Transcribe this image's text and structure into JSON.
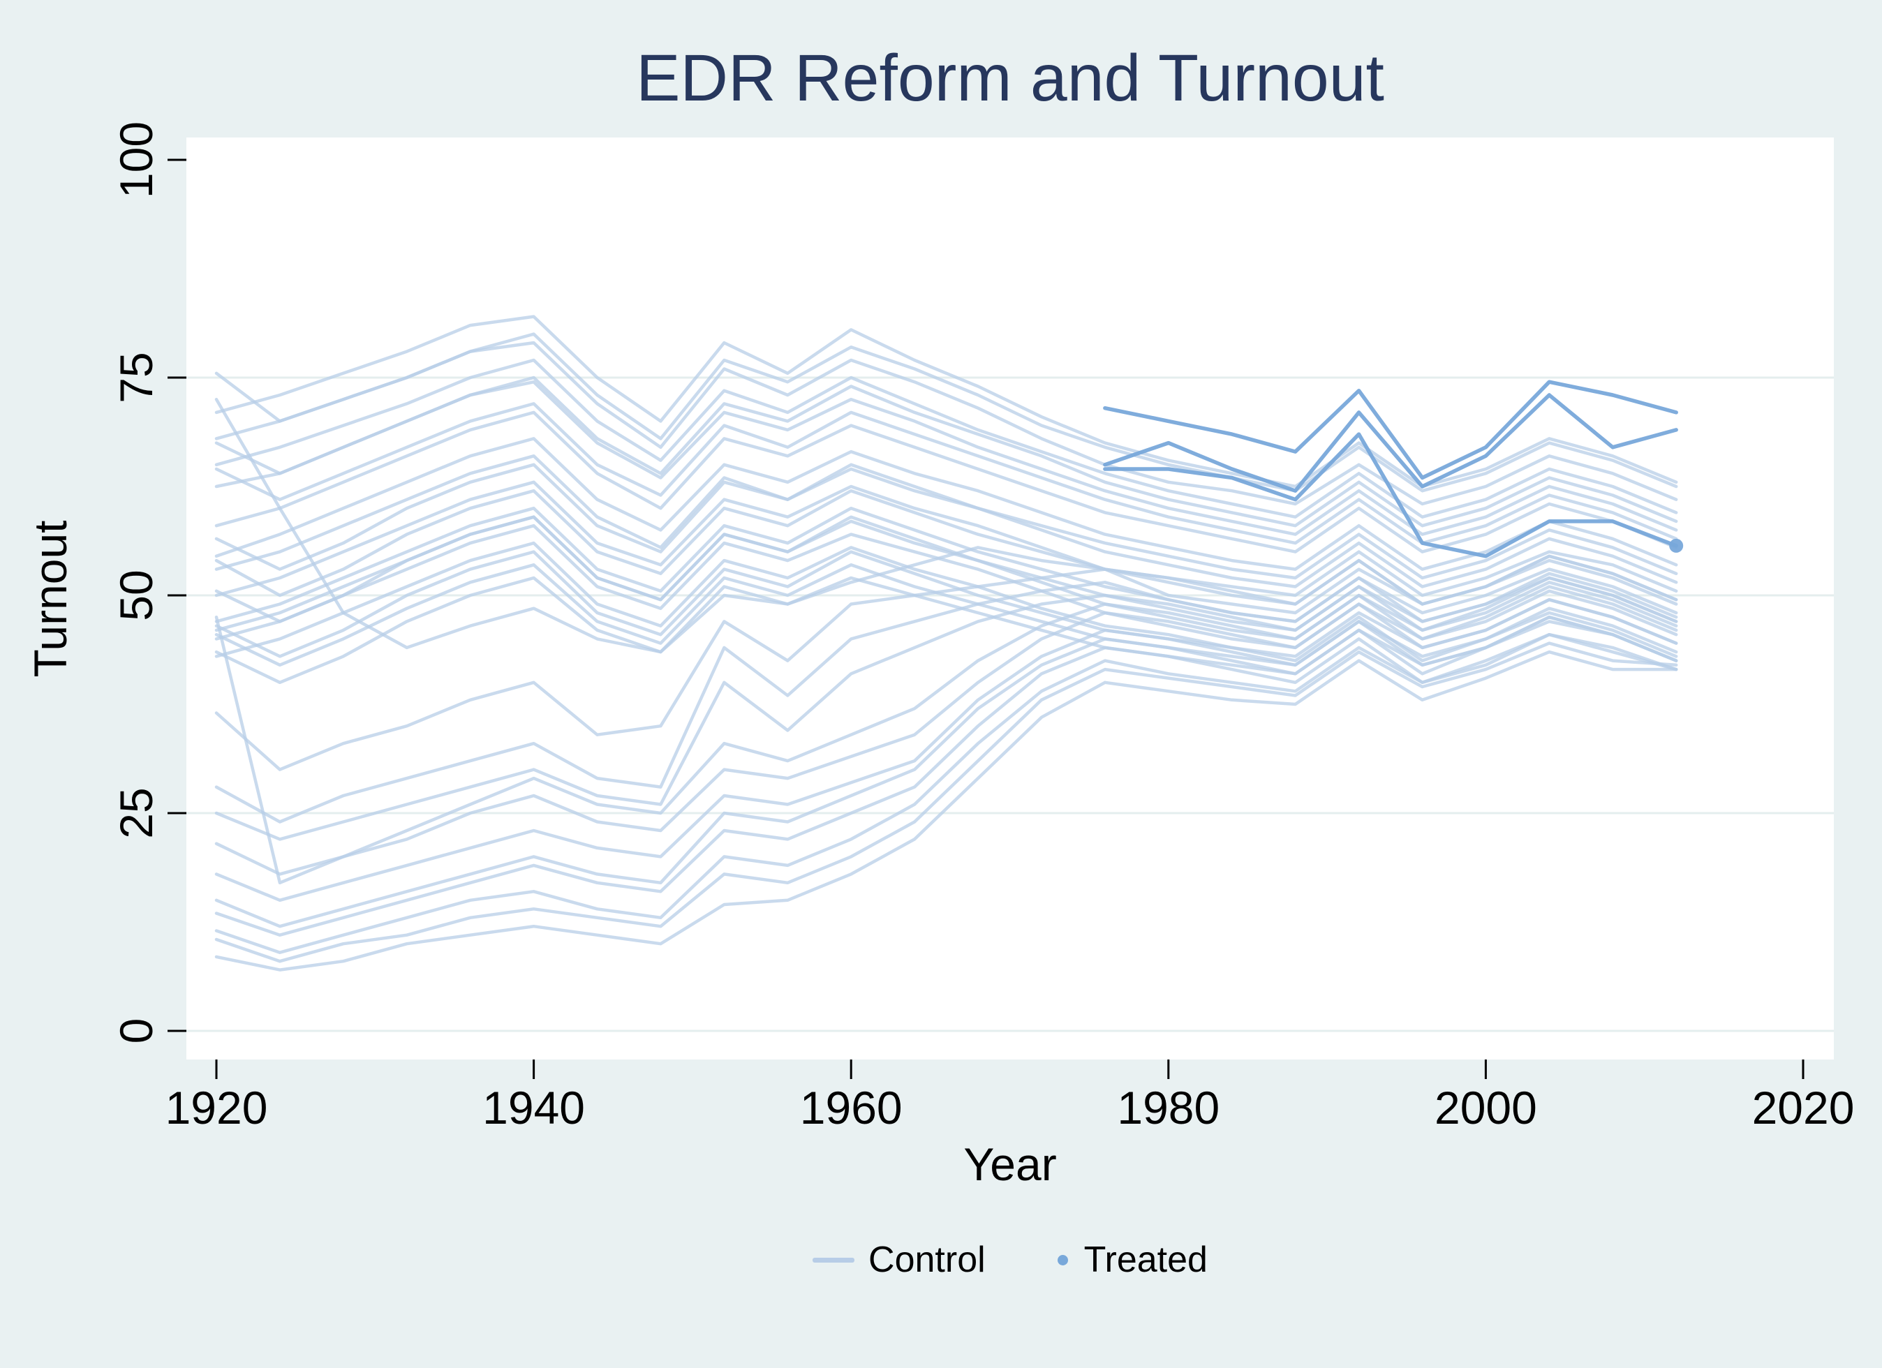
{
  "title": {
    "text": "EDR Reform and Turnout"
  },
  "axes": {
    "x": {
      "label": "Year",
      "ticks": [
        1920,
        1940,
        1960,
        1980,
        2000,
        2020
      ],
      "range": [
        1918,
        2022
      ]
    },
    "y": {
      "label": "Turnout",
      "ticks": [
        0,
        25,
        50,
        75,
        100
      ],
      "gridlines": [
        0,
        25,
        50,
        75
      ],
      "range": [
        -3.3,
        102.6
      ]
    }
  },
  "legend": {
    "control_label": "Control",
    "treated_label": "Treated",
    "position": "bottom center"
  },
  "colors": {
    "background": "#e9f1f2",
    "plot_background": "#ffffff",
    "gridline": "#e4eeee",
    "control": "#b7cde7",
    "treated": "#78a8da",
    "title": "#27375d",
    "axis_text": "#000000",
    "tick": "#000000"
  },
  "chart_data": {
    "type": "line",
    "title": "EDR Reform and Turnout",
    "xlabel": "Year",
    "ylabel": "Turnout",
    "ylim": [
      -3.3,
      102.6
    ],
    "xlim": [
      1918,
      2022
    ],
    "grid": "horizontal gridlines at 0, 25, 50, 75",
    "legend_position": "bottom center",
    "x_control": [
      1920,
      1924,
      1928,
      1932,
      1936,
      1940,
      1944,
      1948,
      1952,
      1956,
      1960,
      1964,
      1968,
      1972,
      1976,
      1980,
      1984,
      1988,
      1992,
      1996,
      2000,
      2004,
      2008,
      2012
    ],
    "x_treated": [
      1976,
      1980,
      1984,
      1988,
      1992,
      1996,
      2000,
      2004,
      2008,
      2012
    ],
    "series": [
      {
        "name": "control-01",
        "group": "control",
        "values": [
          75.5,
          70,
          72.5,
          75,
          78,
          80,
          73,
          68,
          77,
          74.5,
          78.5,
          76,
          73,
          69.5,
          67,
          65,
          63.5,
          62,
          67,
          62,
          64,
          67.5,
          65.5,
          62.5
        ]
      },
      {
        "name": "control-02",
        "group": "control",
        "values": [
          72.5,
          60,
          48,
          44,
          46.5,
          48.5,
          45,
          43.5,
          50,
          49,
          51.5,
          53.5,
          55.5,
          54,
          53,
          52,
          51,
          50,
          55,
          50,
          52,
          55,
          53.5,
          50.5
        ]
      },
      {
        "name": "control-03",
        "group": "control",
        "values": [
          71,
          73,
          75.5,
          78,
          81,
          82,
          75,
          70,
          79,
          75.5,
          80.5,
          77,
          74,
          70.5,
          67.5,
          65.5,
          64,
          62.5,
          67.5,
          62.5,
          64.5,
          68,
          66,
          63
        ]
      },
      {
        "name": "control-04",
        "group": "control",
        "values": [
          68,
          70,
          72.5,
          75,
          78,
          79,
          72,
          67,
          76,
          73,
          77,
          74.5,
          71.5,
          68,
          65,
          63,
          62,
          60.5,
          65,
          60.5,
          62.5,
          66,
          64,
          61
        ]
      },
      {
        "name": "control-05",
        "group": "control",
        "values": [
          67.5,
          64,
          67,
          70,
          73,
          75,
          68,
          64,
          72,
          70,
          74,
          71,
          68.5,
          66,
          63,
          61,
          59.5,
          58,
          63,
          58,
          60,
          63.5,
          61.5,
          58.5
        ]
      },
      {
        "name": "control-06",
        "group": "control",
        "values": [
          65,
          67,
          69.5,
          72,
          75,
          77,
          70,
          65.5,
          73.5,
          71,
          75,
          72,
          69,
          66.5,
          64,
          62,
          60.5,
          59,
          64,
          59,
          61,
          64.5,
          62.5,
          59.5
        ]
      },
      {
        "name": "control-07",
        "group": "control",
        "values": [
          64.5,
          61,
          64,
          67,
          70,
          72,
          65,
          61.5,
          69.5,
          67,
          71,
          68.5,
          66,
          63.5,
          61,
          59,
          57.5,
          56,
          61,
          56,
          58,
          61.5,
          59.5,
          56.5
        ]
      },
      {
        "name": "control-08",
        "group": "control",
        "values": [
          62.5,
          64,
          67,
          70,
          73,
          74.5,
          67.5,
          63.5,
          71,
          69,
          72.5,
          70,
          67,
          64.5,
          62,
          60,
          58.5,
          57,
          62,
          57,
          59,
          62.5,
          60.5,
          57.5
        ]
      },
      {
        "name": "control-09",
        "group": "control",
        "values": [
          58,
          60,
          63,
          66,
          69,
          71,
          64,
          60,
          68,
          66,
          69.5,
          67,
          64.5,
          62,
          59.5,
          58,
          56.5,
          55,
          60,
          55,
          57,
          60.5,
          58.5,
          55.5
        ]
      },
      {
        "name": "control-10",
        "group": "control",
        "values": [
          56.5,
          53,
          56,
          60,
          63,
          65,
          58,
          55,
          63,
          61,
          65,
          62.5,
          60,
          58,
          56,
          54.5,
          53,
          52,
          57,
          52,
          54,
          57.5,
          55.5,
          52.5
        ]
      },
      {
        "name": "control-11",
        "group": "control",
        "values": [
          54.5,
          57,
          60,
          63,
          66,
          68,
          61,
          57.5,
          65,
          63,
          66.5,
          64,
          62,
          59.5,
          57,
          55.5,
          54,
          53,
          58,
          53,
          55,
          58.5,
          56.5,
          53.5
        ]
      },
      {
        "name": "control-12",
        "group": "control",
        "values": [
          54,
          50,
          53,
          57,
          60,
          62,
          55,
          52.5,
          60,
          58,
          62,
          59.5,
          57,
          55,
          53,
          52,
          50.5,
          49,
          54,
          49,
          51,
          54.5,
          52.5,
          49.5
        ]
      },
      {
        "name": "control-13",
        "group": "control",
        "values": [
          53,
          55,
          58,
          61,
          64,
          66,
          59,
          55.5,
          63.5,
          61,
          64.5,
          62,
          60,
          57.5,
          55,
          53.5,
          52,
          51,
          56,
          51,
          53,
          56.5,
          54.5,
          51.5
        ]
      },
      {
        "name": "control-14",
        "group": "control",
        "values": [
          50.5,
          47,
          50,
          54,
          57,
          59,
          52,
          49.5,
          57,
          55,
          59,
          56.5,
          54,
          52,
          50,
          49,
          47.5,
          46,
          51,
          46,
          48,
          51.5,
          49.5,
          46.5
        ]
      },
      {
        "name": "control-15",
        "group": "control",
        "values": [
          50,
          52,
          55,
          58,
          61,
          63,
          56,
          53.5,
          61,
          59,
          62.5,
          60,
          58,
          55.5,
          53,
          51.5,
          50,
          49,
          54,
          49,
          51,
          54.5,
          52.5,
          49.5
        ]
      },
      {
        "name": "control-16",
        "group": "control",
        "values": [
          47.5,
          17,
          20,
          23,
          26,
          29,
          26,
          25,
          33,
          31,
          34,
          37,
          42.5,
          46.5,
          49,
          47.5,
          46,
          45,
          50,
          46,
          48.5,
          52,
          50,
          47
        ]
      },
      {
        "name": "control-17",
        "group": "control",
        "values": [
          47,
          49,
          52,
          55,
          58,
          60,
          53,
          50.5,
          58,
          56,
          60,
          57.5,
          55,
          53,
          51,
          49.5,
          48,
          47,
          52,
          47,
          49,
          52.5,
          50.5,
          47.5
        ]
      },
      {
        "name": "control-18",
        "group": "control",
        "values": [
          46.5,
          43,
          46,
          50,
          53,
          55,
          48,
          45.5,
          53,
          51,
          55,
          52.5,
          50,
          48,
          46,
          45,
          43.5,
          42,
          47,
          42,
          44,
          47.5,
          45.5,
          42.5
        ]
      },
      {
        "name": "control-19",
        "group": "control",
        "values": [
          46,
          48,
          51,
          54,
          57,
          59,
          52,
          49.5,
          57,
          55,
          58.5,
          56,
          54,
          51.5,
          49,
          48,
          46.5,
          45,
          50,
          45,
          47,
          50.5,
          48.5,
          45.5
        ]
      },
      {
        "name": "control-20",
        "group": "control",
        "values": [
          45.5,
          42,
          45,
          48.5,
          51.5,
          53.5,
          47,
          44.5,
          52,
          50,
          53.5,
          51,
          49,
          47,
          45,
          44,
          42.5,
          41,
          46,
          41,
          44,
          47,
          45.5,
          42.5
        ]
      },
      {
        "name": "control-21",
        "group": "control",
        "values": [
          45,
          47,
          50,
          53,
          56,
          58,
          51,
          48.5,
          56,
          54,
          57,
          55,
          53,
          50.5,
          48,
          47,
          45.5,
          44,
          49,
          44,
          46,
          49.5,
          47.5,
          44.5
        ]
      },
      {
        "name": "control-22",
        "group": "control",
        "values": [
          43.5,
          40,
          43,
          47,
          50,
          52,
          46,
          43.5,
          51,
          49,
          52,
          50,
          48,
          46,
          44,
          43,
          41.5,
          40,
          45,
          40,
          42.5,
          45.5,
          44,
          41.5
        ]
      },
      {
        "name": "control-23",
        "group": "control",
        "values": [
          43,
          45,
          48,
          51,
          54,
          56,
          49,
          46.5,
          54,
          52,
          55.5,
          53,
          51,
          48.5,
          46.5,
          45.5,
          44,
          42.5,
          47.5,
          42.5,
          45,
          48,
          46,
          43
        ]
      },
      {
        "name": "control-24",
        "group": "control",
        "values": [
          36.5,
          30,
          33,
          35,
          38,
          40,
          34,
          35,
          47,
          42.5,
          49,
          50,
          51,
          52,
          53,
          50,
          49,
          48,
          53,
          49,
          51,
          54,
          52,
          49
        ]
      },
      {
        "name": "control-25",
        "group": "control",
        "values": [
          28,
          24,
          27,
          29,
          31,
          33,
          29,
          28,
          44,
          38.5,
          45,
          47,
          49,
          50.5,
          51.5,
          49.5,
          48,
          47,
          52,
          48,
          50,
          53,
          51,
          48
        ]
      },
      {
        "name": "control-26",
        "group": "control",
        "values": [
          25,
          22,
          24,
          26,
          28,
          30,
          27,
          26,
          40,
          34.5,
          41,
          44,
          47,
          49,
          50,
          48.5,
          47,
          46,
          51,
          47,
          49,
          52,
          50,
          47
        ]
      },
      {
        "name": "control-27",
        "group": "control",
        "values": [
          21.5,
          18,
          20,
          22,
          25,
          27,
          24,
          23,
          30,
          29,
          31.5,
          34,
          40,
          45,
          48,
          46.5,
          45,
          44,
          49,
          45,
          47.5,
          51,
          49,
          46
        ]
      },
      {
        "name": "control-28",
        "group": "control",
        "values": [
          18,
          15,
          17,
          19,
          21,
          23,
          21,
          20,
          27,
          26,
          28.5,
          31,
          38,
          43,
          46,
          45,
          44,
          43,
          48,
          44,
          46,
          49.5,
          47.5,
          44.5
        ]
      },
      {
        "name": "control-29",
        "group": "control",
        "values": [
          15,
          12,
          14,
          16,
          18,
          20,
          18,
          17,
          25,
          24,
          27,
          30,
          37,
          42,
          45,
          44,
          43,
          42,
          47,
          43,
          45,
          48.5,
          46.5,
          43.5
        ]
      },
      {
        "name": "control-30",
        "group": "control",
        "values": [
          13.5,
          11,
          13,
          15,
          17,
          19,
          17,
          16,
          23,
          22,
          25,
          28,
          35,
          41,
          44,
          43,
          42,
          41,
          46,
          42,
          44,
          47.5,
          45.5,
          42.5
        ]
      },
      {
        "name": "control-31",
        "group": "control",
        "values": [
          11.5,
          9,
          11,
          13,
          15,
          16,
          14,
          13,
          20,
          19,
          22,
          26,
          33,
          39,
          42.5,
          41,
          40,
          39,
          44,
          40,
          42,
          45.5,
          43.5,
          41.5
        ]
      },
      {
        "name": "control-32",
        "group": "control",
        "values": [
          10.5,
          8,
          10,
          11,
          13,
          14,
          13,
          12,
          18,
          17,
          20,
          24,
          31,
          38,
          41.5,
          40.5,
          39.5,
          38.5,
          43.5,
          39.5,
          41.5,
          44.5,
          42.5,
          42
        ]
      },
      {
        "name": "control-33",
        "group": "control",
        "values": [
          8.5,
          7,
          8,
          10,
          11,
          12,
          11,
          10,
          14.5,
          15,
          18,
          22,
          29,
          36,
          40,
          39,
          38,
          37.5,
          42.5,
          38,
          40.5,
          43.5,
          41.5,
          41.5
        ]
      },
      {
        "name": "treated-1",
        "group": "treated",
        "values": [
          71.5,
          70,
          68.5,
          66.5,
          73.5,
          63.5,
          67,
          74.5,
          73,
          71
        ]
      },
      {
        "name": "treated-2",
        "group": "treated",
        "values": [
          65,
          67.5,
          64.5,
          62,
          71,
          62.5,
          66,
          73,
          67,
          69
        ]
      },
      {
        "name": "treated-3",
        "group": "treated",
        "marker_end": true,
        "values": [
          64.5,
          64.5,
          63.5,
          61,
          68.5,
          56,
          54.5,
          58.5,
          58.5,
          55.7
        ]
      }
    ]
  }
}
